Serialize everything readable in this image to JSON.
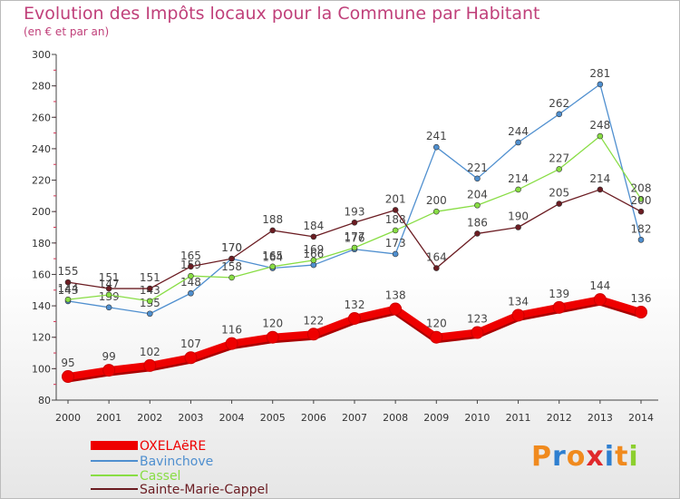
{
  "title": "Evolution des Impôts locaux pour la Commune par Habitant",
  "subtitle": "(en € et par an)",
  "brand": "Proxiti",
  "chart_data": {
    "type": "line",
    "x": [
      "2000",
      "2001",
      "2002",
      "2003",
      "2004",
      "2005",
      "2006",
      "2007",
      "2008",
      "2009",
      "2010",
      "2011",
      "2012",
      "2013",
      "2014"
    ],
    "ylim": [
      80,
      300
    ],
    "yticks": [
      80,
      100,
      120,
      140,
      160,
      180,
      200,
      220,
      240,
      260,
      280,
      300
    ],
    "grid": false,
    "legend": "bottom-left",
    "series": [
      {
        "name": "OXELAëRE",
        "color": "#ee0000",
        "values": [
          95,
          99,
          102,
          107,
          116,
          120,
          122,
          132,
          138,
          120,
          123,
          134,
          139,
          144,
          136
        ]
      },
      {
        "name": "Bavinchove",
        "color": "#4f8fcf",
        "values": [
          143,
          139,
          135,
          148,
          170,
          164,
          166,
          176,
          173,
          241,
          221,
          244,
          262,
          281,
          182
        ]
      },
      {
        "name": "Cassel",
        "color": "#88dd44",
        "values": [
          144,
          147,
          143,
          159,
          158,
          165,
          169,
          177,
          188,
          200,
          204,
          214,
          227,
          248,
          208
        ]
      },
      {
        "name": "Sainte-Marie-Cappel",
        "color": "#6b1c22",
        "values": [
          155,
          151,
          151,
          165,
          170,
          188,
          184,
          193,
          201,
          164,
          186,
          190,
          205,
          214,
          200
        ]
      }
    ]
  }
}
